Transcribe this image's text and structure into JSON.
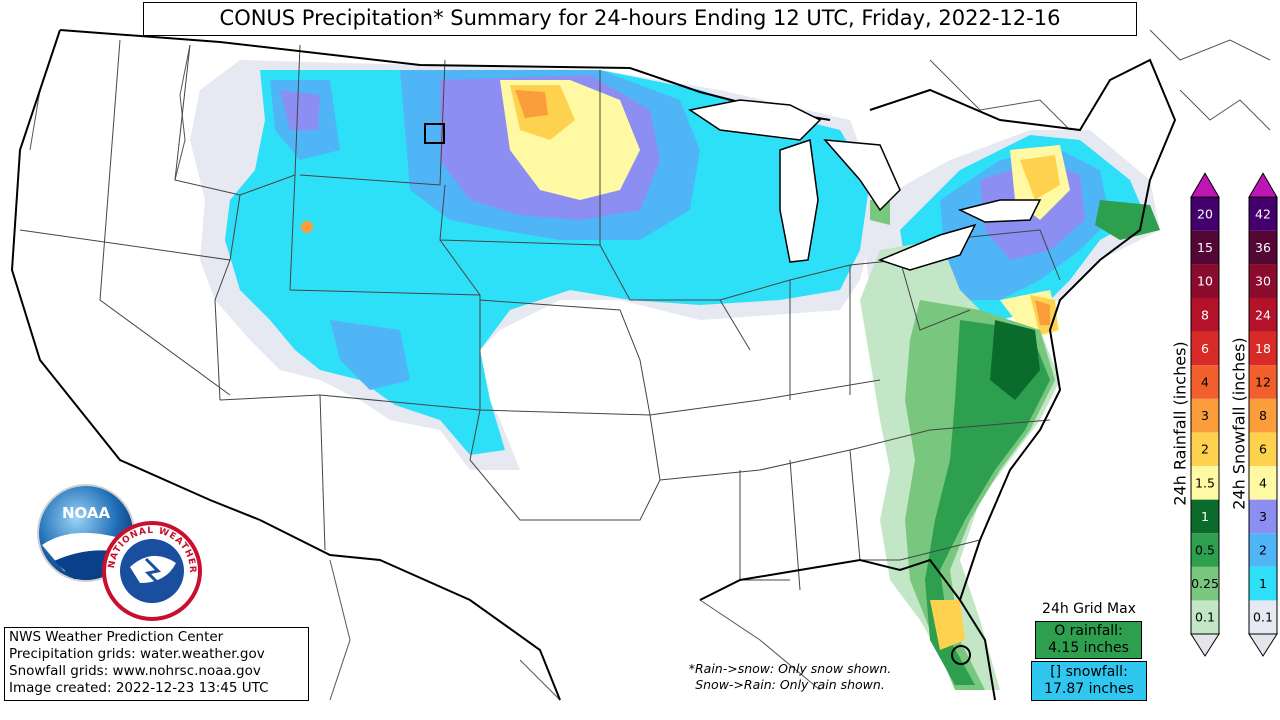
{
  "title": "CONUS Precipitation* Summary for 24-hours Ending 12 UTC, Friday, 2022-12-16",
  "credits": [
    "NWS Weather Prediction Center",
    "Precipitation grids: water.weather.gov",
    "Snowfall grids: www.nohrsc.noaa.gov",
    "Image created: 2022-12-23 13:45 UTC"
  ],
  "footnote": [
    "*Rain->snow: Only snow shown.",
    "Snow->Rain: Only rain shown."
  ],
  "grid_max": {
    "label": "24h Grid Max",
    "rainfall_label": "O rainfall:",
    "rainfall_value": "4.15 inches",
    "snowfall_label": "[] snowfall:",
    "snowfall_value": "17.87 inches"
  },
  "logos": {
    "noaa_text": "NOAA",
    "nws_text": "NATIONAL WEATHER SERVICE"
  },
  "rain_colorbar": {
    "title": "24h Rainfall (inches)",
    "levels": [
      "0.1",
      "0.25",
      "0.5",
      "1",
      "1.5",
      "2",
      "3",
      "4",
      "6",
      "8",
      "10",
      "15",
      "20"
    ],
    "colors": [
      "#c3e6c6",
      "#79c77f",
      "#2e9e4f",
      "#0b6b2c",
      "#fff9a3",
      "#fed24f",
      "#fb9d3a",
      "#f15f2c",
      "#d82a27",
      "#b4112b",
      "#8a0b2c",
      "#540635",
      "#43006c"
    ],
    "over_color": "#c015b6",
    "under_color": "#e4e4ea"
  },
  "snow_colorbar": {
    "title": "24h Snowfall (inches)",
    "levels": [
      "0.1",
      "1",
      "2",
      "3",
      "4",
      "6",
      "8",
      "12",
      "18",
      "24",
      "30",
      "36",
      "42"
    ],
    "colors": [
      "#e6e8f2",
      "#2ee0f7",
      "#4fb5f7",
      "#8c8ef2",
      "#fff9a3",
      "#fed24f",
      "#fb9d3a",
      "#f15f2c",
      "#d82a27",
      "#b4112b",
      "#8a0b2c",
      "#540635",
      "#43006c"
    ],
    "over_color": "#c015b6",
    "under_color": "#e4e4ea"
  }
}
